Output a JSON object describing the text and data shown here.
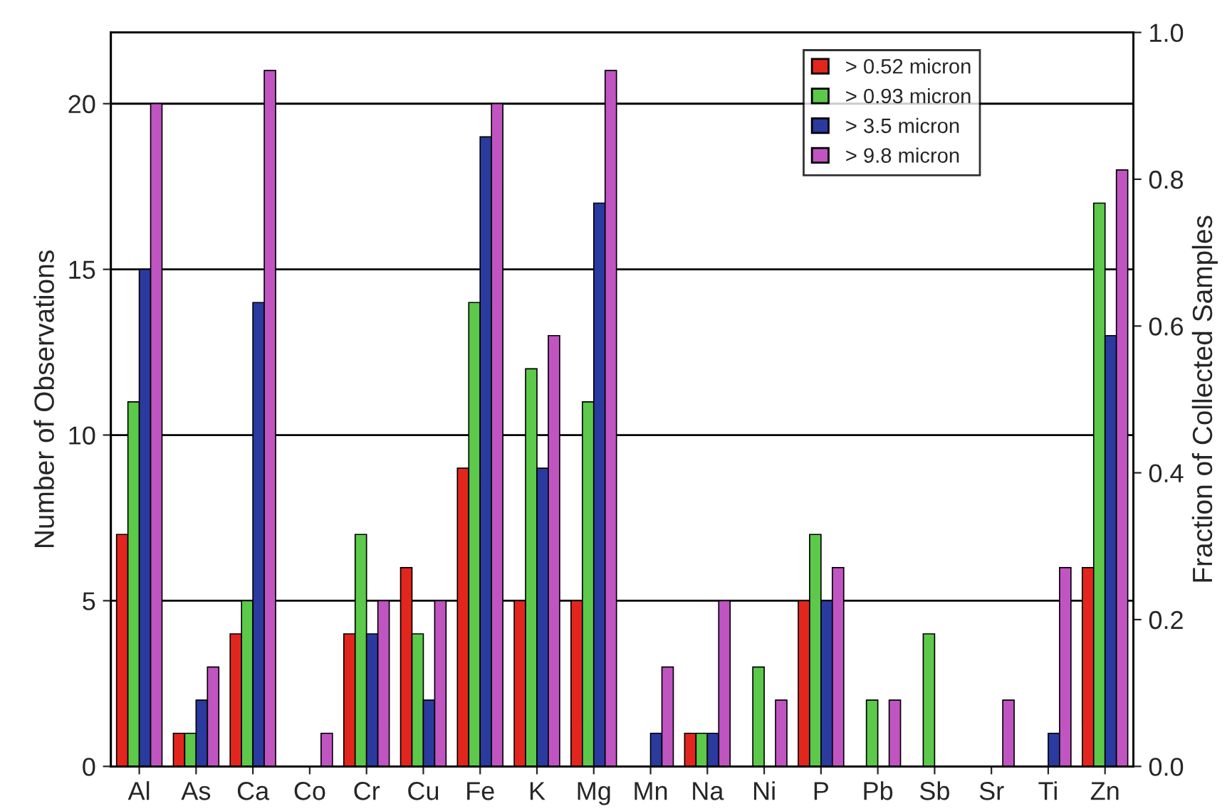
{
  "chart_data": {
    "type": "bar",
    "ylabel": "Number of Observations",
    "y2label": "Fraction of Collected Samples",
    "categories": [
      "Al",
      "As",
      "Ca",
      "Co",
      "Cr",
      "Cu",
      "Fe",
      "K",
      "Mg",
      "Mn",
      "Na",
      "Ni",
      "P",
      "Pb",
      "Sb",
      "Sr",
      "Ti",
      "Zn"
    ],
    "series": [
      {
        "name": "> 0.52 micron",
        "color": "#e3261d",
        "values": [
          7,
          1,
          4,
          0,
          4,
          6,
          9,
          5,
          5,
          0,
          1,
          0,
          5,
          0,
          0,
          0,
          0,
          6
        ]
      },
      {
        "name": "> 0.93 micron",
        "color": "#5cc94a",
        "values": [
          11,
          1,
          5,
          0,
          7,
          4,
          14,
          12,
          11,
          0,
          1,
          3,
          7,
          2,
          4,
          0,
          0,
          17
        ]
      },
      {
        "name": "> 3.5 micron",
        "color": "#2b3a9e",
        "values": [
          15,
          2,
          14,
          0,
          4,
          2,
          19,
          9,
          17,
          1,
          1,
          0,
          5,
          0,
          0,
          0,
          1,
          13
        ]
      },
      {
        "name": "> 9.8 micron",
        "color": "#c055c2",
        "values": [
          20,
          3,
          21,
          1,
          5,
          5,
          20,
          13,
          21,
          3,
          5,
          2,
          6,
          2,
          0,
          2,
          6,
          18
        ]
      }
    ],
    "ylim": [
      0,
      22.15
    ],
    "yticks": [
      0,
      5,
      10,
      15,
      20
    ],
    "y2lim": [
      0,
      1
    ],
    "y2ticks": [
      {
        "value": 0,
        "label": "0.0"
      },
      {
        "value": 0.2,
        "label": "0.2"
      },
      {
        "value": 0.4,
        "label": "0.4"
      },
      {
        "value": 0.6,
        "label": "0.6"
      },
      {
        "value": 0.8,
        "label": "0.8"
      },
      {
        "value": 1,
        "label": "1.0"
      }
    ],
    "grid": "y",
    "legend": "top right"
  }
}
